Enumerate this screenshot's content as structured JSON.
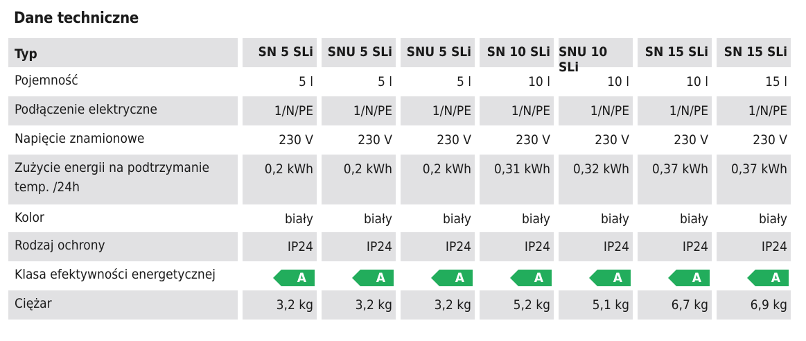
{
  "title": "Dane techniczne",
  "header": {
    "label": "Typ",
    "models": [
      "SN 5 SLi",
      "SNU 5 SLi",
      "SNU 5 SLi",
      "SN 10 SLi",
      "SNU 10 SLi",
      "SN 15 SLi",
      "SN 15 SLi"
    ]
  },
  "rows": [
    {
      "label": "Pojemność",
      "values": [
        "5 l",
        "5 l",
        "5 l",
        "10 l",
        "10 l",
        "10 l",
        "15 l"
      ]
    },
    {
      "label": "Podłączenie elektryczne",
      "values": [
        "1/N/PE",
        "1/N/PE",
        "1/N/PE",
        "1/N/PE",
        "1/N/PE",
        "1/N/PE",
        "1/N/PE"
      ]
    },
    {
      "label": "Napięcie znamionowe",
      "values": [
        "230 V",
        "230 V",
        "230 V",
        "230 V",
        "230 V",
        "230 V",
        "230 V"
      ]
    },
    {
      "label": "Zużycie energii na podtrzymanie temp. /24h",
      "values": [
        "0,2 kWh",
        "0,2 kWh",
        "0,2 kWh",
        "0,31 kWh",
        "0,32 kWh",
        "0,37 kWh",
        "0,37 kWh"
      ]
    },
    {
      "label": "Kolor",
      "values": [
        "biały",
        "biały",
        "biały",
        "biały",
        "biały",
        "biały",
        "biały"
      ]
    },
    {
      "label": "Rodzaj ochrony",
      "values": [
        "IP24",
        "IP24",
        "IP24",
        "IP24",
        "IP24",
        "IP24",
        "IP24"
      ]
    },
    {
      "label": "Klasa efektywności energetycznej",
      "values": [
        "A",
        "A",
        "A",
        "A",
        "A",
        "A",
        "A"
      ],
      "badge": true,
      "badge_color": "#22ad5c"
    },
    {
      "label": "Ciężar",
      "values": [
        "3,2 kg",
        "3,2 kg",
        "3,2 kg",
        "5,2 kg",
        "5,1 kg",
        "6,7 kg",
        "6,9 kg"
      ]
    }
  ]
}
